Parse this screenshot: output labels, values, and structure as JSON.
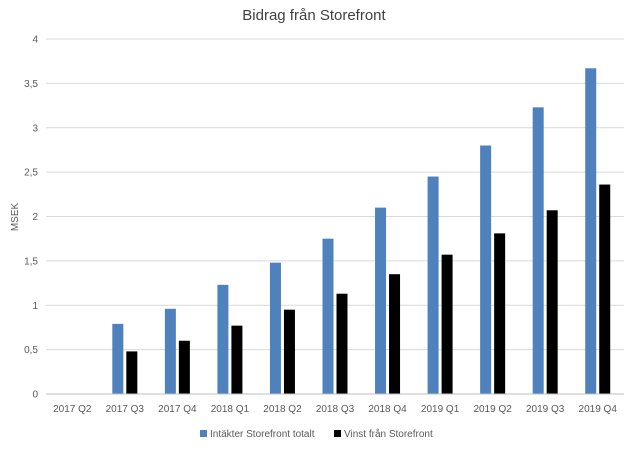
{
  "chart_data": {
    "type": "bar",
    "title": "Bidrag från Storefront",
    "xlabel": "",
    "ylabel": "MSEK",
    "ylim": [
      0,
      4
    ],
    "yticks": [
      0,
      0.5,
      1,
      1.5,
      2,
      2.5,
      3,
      3.5,
      4
    ],
    "ytick_labels": [
      "0",
      "0,5",
      "1",
      "1,5",
      "2",
      "2,5",
      "3",
      "3,5",
      "4"
    ],
    "categories": [
      "2017 Q2",
      "2017 Q3",
      "2017 Q4",
      "2018 Q1",
      "2018 Q2",
      "2018 Q3",
      "2018 Q4",
      "2019 Q1",
      "2019 Q2",
      "2019 Q3",
      "2019 Q4"
    ],
    "series": [
      {
        "name": "Intäkter Storefront totalt",
        "color": "#4f81bd",
        "values": [
          0,
          0.79,
          0.96,
          1.23,
          1.48,
          1.75,
          2.1,
          2.45,
          2.8,
          3.23,
          3.67
        ]
      },
      {
        "name": "Vinst från Storefront",
        "color": "#000000",
        "values": [
          0,
          0.48,
          0.6,
          0.77,
          0.95,
          1.13,
          1.35,
          1.57,
          1.81,
          2.07,
          2.36
        ]
      }
    ],
    "grid": true,
    "legend": "bottom"
  }
}
